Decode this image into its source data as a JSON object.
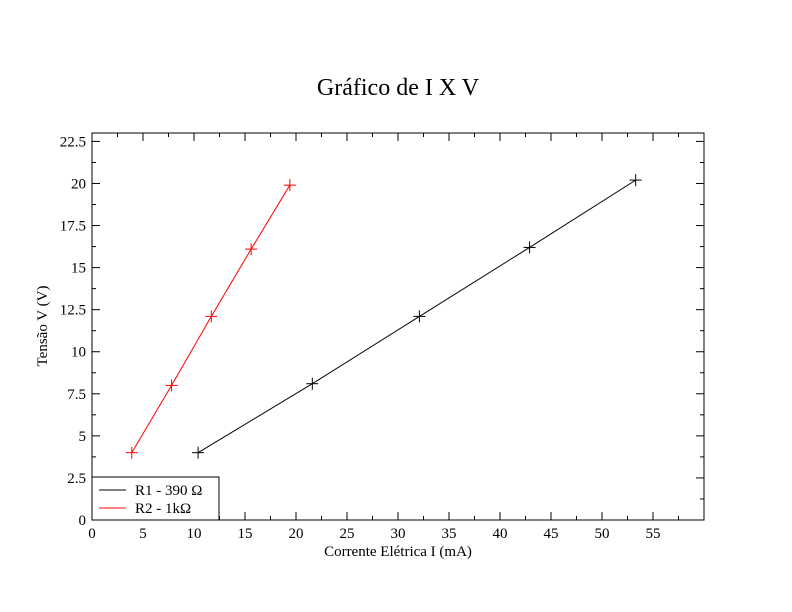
{
  "chart_data": {
    "type": "line",
    "title": "Gráfico de I X V",
    "xlabel": "Corrente Elétrica I  (mA)",
    "ylabel": "Tensão V (V)",
    "xlim": [
      0,
      60
    ],
    "ylim": [
      0,
      23
    ],
    "x_ticks": [
      0,
      5,
      10,
      15,
      20,
      25,
      30,
      35,
      40,
      45,
      50,
      55
    ],
    "y_ticks": [
      0,
      2.5,
      5,
      7.5,
      10,
      12.5,
      15,
      17.5,
      20,
      22.5
    ],
    "x_tick_labels": [
      "0",
      "5",
      "10",
      "15",
      "20",
      "25",
      "30",
      "35",
      "40",
      "45",
      "50",
      "55"
    ],
    "y_tick_labels": [
      "0",
      "2.5",
      "5",
      "7.5",
      "10",
      "12.5",
      "15",
      "17.5",
      "20",
      "22.5"
    ],
    "grid": false,
    "legend_position": "bottom-left",
    "marker": "plus",
    "series": [
      {
        "name": "R1 - 390 Ω",
        "color": "#000000",
        "x": [
          10.4,
          21.6,
          32.1,
          42.9,
          53.3
        ],
        "y": [
          4.0,
          8.1,
          12.1,
          16.2,
          20.2
        ]
      },
      {
        "name": "R2 - 1kΩ",
        "color": "#ff0000",
        "x": [
          3.9,
          7.8,
          11.7,
          15.6,
          19.4
        ],
        "y": [
          4.0,
          8.0,
          12.1,
          16.1,
          19.9
        ]
      }
    ]
  }
}
